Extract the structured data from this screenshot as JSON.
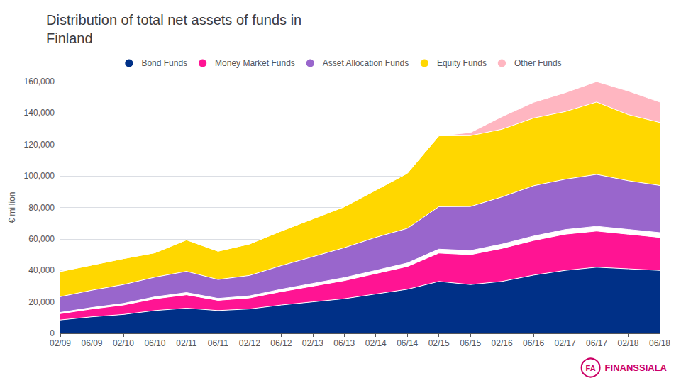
{
  "chart_data": {
    "type": "area",
    "title": "Distribution of total net assets of funds in\nFinland",
    "ylabel": "€ million",
    "annotations": [
      "FA",
      "FINANSSIALA"
    ],
    "categories": [
      "02/09",
      "06/09",
      "02/10",
      "06/10",
      "02/11",
      "06/11",
      "02/12",
      "06/12",
      "02/13",
      "06/13",
      "02/14",
      "06/14",
      "02/15",
      "06/15",
      "02/16",
      "06/16",
      "02/17",
      "06/17",
      "02/18",
      "06/18"
    ],
    "series": [
      {
        "name": "Bond Funds",
        "color": "#003087",
        "values": [
          8500,
          10500,
          12000,
          14500,
          16000,
          14500,
          15500,
          18000,
          20000,
          22000,
          25000,
          28000,
          33000,
          31000,
          33000,
          37000,
          40000,
          42000,
          41000,
          40000
        ]
      },
      {
        "name": "Money Market Funds",
        "color": "#FF1493",
        "values": [
          4000,
          5000,
          6000,
          7500,
          8500,
          6500,
          7000,
          8500,
          10000,
          11500,
          13000,
          14500,
          18000,
          19000,
          21000,
          22000,
          23000,
          23000,
          22000,
          21000
        ]
      },
      {
        "color": "#FFFFFF",
        "values": [
          800,
          900,
          1000,
          1200,
          1400,
          1200,
          1300,
          1500,
          1700,
          1900,
          2000,
          2200,
          2500,
          2600,
          2700,
          2800,
          2900,
          3000,
          3000,
          3000
        ]
      },
      {
        "name": "Asset Allocation Funds",
        "color": "#9966CC",
        "values": [
          10000,
          11000,
          12000,
          12500,
          13500,
          12000,
          13000,
          15000,
          17000,
          19000,
          21000,
          22000,
          27000,
          28000,
          30000,
          32000,
          32000,
          33000,
          31000,
          30000
        ]
      },
      {
        "name": "Equity Funds",
        "color": "#FFD700",
        "values": [
          16000,
          16000,
          16500,
          15500,
          20000,
          18000,
          20000,
          22000,
          24000,
          26000,
          30000,
          35000,
          45000,
          45000,
          43000,
          43000,
          43000,
          46000,
          42000,
          40000
        ]
      },
      {
        "name": "Other Funds",
        "color": "#FFB6C1",
        "values": [
          0,
          0,
          0,
          0,
          0,
          0,
          0,
          0,
          0,
          0,
          0,
          0,
          0,
          2000,
          8000,
          10000,
          12000,
          13000,
          15000,
          13000
        ]
      }
    ],
    "stacked": true,
    "ylim": [
      0,
      160000
    ],
    "yticks": [
      0,
      {
        "value": 20000,
        "label": "20,000"
      },
      {
        "value": 40000,
        "label": "40,000"
      },
      {
        "value": 60000,
        "label": "60,000"
      },
      {
        "value": 80000,
        "label": "80,000"
      },
      {
        "value": 100000,
        "label": "100,000"
      },
      {
        "value": 120000,
        "label": "120,000"
      },
      {
        "value": 140000,
        "label": "140,000"
      },
      {
        "value": 160000,
        "label": "160,000"
      }
    ],
    "grid": true,
    "legend": "top"
  }
}
